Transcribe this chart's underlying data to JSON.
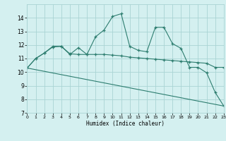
{
  "line1_x": [
    0,
    1,
    2,
    3,
    4,
    5,
    6,
    7,
    8,
    9,
    10,
    11,
    12,
    13,
    14,
    15,
    16,
    17,
    18,
    19,
    20,
    21,
    22,
    23
  ],
  "line1_y": [
    10.3,
    11.0,
    11.4,
    11.9,
    11.9,
    11.3,
    11.8,
    11.3,
    12.6,
    13.1,
    14.1,
    14.3,
    11.9,
    11.6,
    11.5,
    13.3,
    13.3,
    12.1,
    11.75,
    10.35,
    10.35,
    9.95,
    8.5,
    7.5
  ],
  "line2_x": [
    0,
    1,
    2,
    3,
    4,
    5,
    6,
    7,
    8,
    9,
    10,
    11,
    12,
    13,
    14,
    15,
    16,
    17,
    18,
    19,
    20,
    21,
    22,
    23
  ],
  "line2_y": [
    10.3,
    11.0,
    11.4,
    11.85,
    11.9,
    11.35,
    11.3,
    11.3,
    11.3,
    11.3,
    11.25,
    11.2,
    11.1,
    11.05,
    11.0,
    10.95,
    10.9,
    10.85,
    10.8,
    10.75,
    10.7,
    10.65,
    10.35,
    10.35
  ],
  "line3_x": [
    0,
    23
  ],
  "line3_y": [
    10.3,
    7.5
  ],
  "color": "#2d7d6f",
  "background": "#d4f0f0",
  "grid_color": "#aad4d4",
  "xlabel": "Humidex (Indice chaleur)",
  "ylim": [
    7,
    15
  ],
  "xlim": [
    0,
    23
  ],
  "yticks": [
    7,
    8,
    9,
    10,
    11,
    12,
    13,
    14
  ],
  "xticks": [
    0,
    1,
    2,
    3,
    4,
    5,
    6,
    7,
    8,
    9,
    10,
    11,
    12,
    13,
    14,
    15,
    16,
    17,
    18,
    19,
    20,
    21,
    22,
    23
  ]
}
